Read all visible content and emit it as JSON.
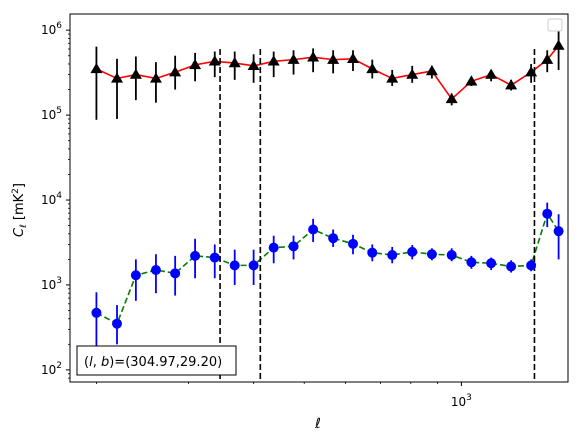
{
  "chart_data": {
    "type": "scatter",
    "xscale": "log",
    "yscale": "log",
    "xlim": [
      178,
      1600
    ],
    "ylim": [
      72,
      1550000
    ],
    "xlabel": "ℓ",
    "ylabel": "C_ℓ  [mK²]",
    "ylabel_main": "C",
    "ylabel_sub": "ℓ",
    "ylabel_unit": "[mK",
    "ylabel_unit_sup": "2",
    "ylabel_unit_close": "]",
    "xtick_labels": [
      {
        "value": 1000,
        "base": "10",
        "exp": "3"
      }
    ],
    "ytick_labels": [
      {
        "value": 100,
        "base": "10",
        "exp": "2"
      },
      {
        "value": 1000,
        "base": "10",
        "exp": "3"
      },
      {
        "value": 10000,
        "base": "10",
        "exp": "4"
      },
      {
        "value": 100000,
        "base": "10",
        "exp": "5"
      },
      {
        "value": 1000000,
        "base": "10",
        "exp": "6"
      }
    ],
    "annotation": "(l, b)=(304.97,29.20)",
    "annotation_parts": {
      "open": "(",
      "l": "l",
      "comma": ", ",
      "b": "b",
      "rest": ")=(304.97,29.20)"
    },
    "legend_position": "top-right",
    "grid": false,
    "vlines": [
      345,
      412,
      1380
    ],
    "series": [
      {
        "marker": "triangle",
        "color": "#000000",
        "line_color": "#ff0000",
        "line_style": "solid",
        "x": [
          200,
          219,
          238,
          260,
          283,
          309,
          337,
          368,
          400,
          437,
          477,
          520,
          568,
          620,
          675,
          737,
          805,
          878,
          958,
          1045,
          1140,
          1245,
          1360,
          1460,
          1535
        ],
        "y": [
          350000,
          270000,
          300000,
          270000,
          320000,
          390000,
          430000,
          410000,
          380000,
          430000,
          450000,
          480000,
          450000,
          460000,
          350000,
          270000,
          300000,
          330000,
          155000,
          250000,
          300000,
          225000,
          320000,
          450000,
          660000
        ],
        "yerr_low": [
          88000,
          90000,
          150000,
          140000,
          200000,
          250000,
          280000,
          260000,
          240000,
          280000,
          300000,
          320000,
          310000,
          330000,
          270000,
          220000,
          240000,
          270000,
          130000,
          220000,
          250000,
          195000,
          240000,
          320000,
          340000
        ],
        "yerr_high": [
          640000,
          460000,
          490000,
          420000,
          500000,
          540000,
          560000,
          560000,
          520000,
          560000,
          580000,
          610000,
          580000,
          580000,
          450000,
          340000,
          380000,
          380000,
          180000,
          280000,
          340000,
          260000,
          400000,
          580000,
          1050000
        ]
      },
      {
        "marker": "circle",
        "color": "#0000ff",
        "line_color": "#008000",
        "line_style": "dashed",
        "x": [
          200,
          219,
          238,
          260,
          283,
          309,
          337,
          368,
          400,
          437,
          477,
          520,
          568,
          620,
          675,
          737,
          805,
          878,
          958,
          1045,
          1140,
          1245,
          1360,
          1460,
          1535
        ],
        "y": [
          470,
          350,
          1300,
          1500,
          1370,
          2200,
          2100,
          1700,
          1700,
          2750,
          2850,
          4500,
          3550,
          3050,
          2400,
          2250,
          2450,
          2300,
          2250,
          1850,
          1800,
          1650,
          1700,
          6900,
          4300
        ],
        "yerr_low": [
          120,
          200,
          650,
          800,
          750,
          1200,
          1200,
          1000,
          1000,
          1800,
          2000,
          3200,
          2800,
          2300,
          1900,
          1800,
          2000,
          1950,
          1900,
          1550,
          1500,
          1400,
          1450,
          4800,
          2000
        ],
        "yerr_high": [
          820,
          580,
          2000,
          2300,
          2200,
          3500,
          3000,
          2600,
          2600,
          3800,
          3800,
          6000,
          4500,
          3900,
          3000,
          2800,
          2950,
          2700,
          2700,
          2200,
          2100,
          1950,
          2000,
          9300,
          6800
        ]
      }
    ]
  }
}
